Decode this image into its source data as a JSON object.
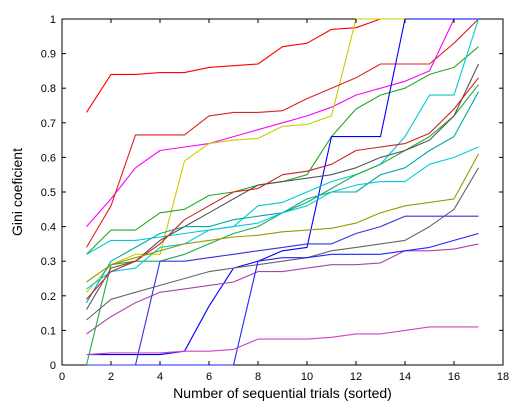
{
  "chart_data": {
    "type": "line",
    "title": "",
    "xlabel": "Number of sequential trials (sorted)",
    "ylabel": "Gini coeficient",
    "xlim": [
      0,
      18
    ],
    "ylim": [
      0,
      1
    ],
    "xticks": [
      0,
      2,
      4,
      6,
      8,
      10,
      12,
      14,
      16,
      18
    ],
    "yticks": [
      0,
      0.1,
      0.2,
      0.3,
      0.4,
      0.5,
      0.6,
      0.7,
      0.8,
      0.9,
      1
    ],
    "xtick_labels": [
      "0",
      "2",
      "4",
      "6",
      "8",
      "10",
      "12",
      "14",
      "16",
      "18"
    ],
    "ytick_labels": [
      "0",
      "0.1",
      "0.2",
      "0.3",
      "0.4",
      "0.5",
      "0.6",
      "0.7",
      "0.8",
      "0.9",
      "1"
    ],
    "grid": false,
    "series": [
      {
        "color": "#ff0000",
        "x": [
          1,
          2,
          3,
          4,
          5,
          6,
          7,
          8,
          9,
          10,
          11,
          12,
          13,
          14,
          15,
          16,
          17
        ],
        "y": [
          0.73,
          0.84,
          0.84,
          0.845,
          0.845,
          0.86,
          0.865,
          0.87,
          0.92,
          0.93,
          0.97,
          0.975,
          1.0,
          1.0,
          1.0,
          1.0,
          1.0
        ]
      },
      {
        "color": "#ff00ff",
        "x": [
          1,
          2,
          3,
          4,
          5,
          6,
          7,
          8,
          9,
          10,
          11,
          12,
          13,
          14,
          15,
          16,
          17
        ],
        "y": [
          0.4,
          0.48,
          0.57,
          0.62,
          0.63,
          0.64,
          0.66,
          0.68,
          0.7,
          0.72,
          0.745,
          0.78,
          0.8,
          0.82,
          0.85,
          1.0,
          1.0
        ]
      },
      {
        "color": "#cccc00",
        "x": [
          1,
          2,
          3,
          4,
          5,
          6,
          7,
          8,
          9,
          10,
          11,
          12,
          13,
          14,
          15,
          16,
          17
        ],
        "y": [
          0.21,
          0.29,
          0.32,
          0.32,
          0.59,
          0.64,
          0.65,
          0.655,
          0.69,
          0.695,
          0.72,
          1.0,
          1.0,
          1.0,
          1.0,
          1.0,
          1.0
        ]
      },
      {
        "color": "#dd2222",
        "x": [
          1,
          2,
          3,
          4,
          5,
          6,
          7,
          8,
          9,
          10,
          11,
          12,
          13,
          14,
          15,
          16,
          17
        ],
        "y": [
          0.34,
          0.46,
          0.665,
          0.665,
          0.665,
          0.72,
          0.73,
          0.73,
          0.735,
          0.77,
          0.8,
          0.83,
          0.87,
          0.87,
          0.87,
          0.93,
          1.0
        ]
      },
      {
        "color": "#22aa22",
        "x": [
          1,
          2,
          3,
          4,
          5,
          6,
          7,
          8,
          9,
          10,
          11,
          12,
          13,
          14,
          15,
          16,
          17
        ],
        "y": [
          0.32,
          0.39,
          0.39,
          0.44,
          0.45,
          0.49,
          0.5,
          0.52,
          0.53,
          0.55,
          0.66,
          0.74,
          0.78,
          0.8,
          0.84,
          0.86,
          0.92
        ]
      },
      {
        "color": "#0000ff",
        "x": [
          1,
          2,
          3,
          4,
          5,
          6,
          7,
          8,
          9,
          10,
          11,
          12,
          13,
          14,
          15,
          16,
          17
        ],
        "y": [
          0.03,
          0.03,
          0.03,
          0.03,
          0.04,
          0.17,
          0.28,
          0.3,
          0.33,
          0.34,
          0.66,
          0.66,
          0.66,
          1.0,
          1.0,
          1.0,
          1.0
        ]
      },
      {
        "color": "#00cccc",
        "x": [
          1,
          2,
          3,
          4,
          5,
          6,
          7,
          8,
          9,
          10,
          11,
          12,
          13,
          14,
          15,
          16,
          17
        ],
        "y": [
          0.32,
          0.36,
          0.36,
          0.37,
          0.38,
          0.39,
          0.4,
          0.46,
          0.47,
          0.5,
          0.53,
          0.55,
          0.58,
          0.66,
          0.78,
          0.78,
          1.0
        ]
      },
      {
        "color": "#22aa44",
        "x": [
          1,
          2,
          3,
          4,
          5,
          6,
          7,
          8,
          9,
          10,
          11,
          12,
          13,
          14,
          15,
          16,
          17
        ],
        "y": [
          0.0,
          0.29,
          0.3,
          0.3,
          0.32,
          0.35,
          0.38,
          0.4,
          0.44,
          0.47,
          0.51,
          0.55,
          0.58,
          0.62,
          0.66,
          0.72,
          0.81
        ]
      },
      {
        "color": "#555555",
        "x": [
          1,
          2,
          3,
          4,
          5,
          6,
          7,
          8,
          9,
          10,
          11,
          12,
          13,
          14,
          15,
          16,
          17
        ],
        "y": [
          0.16,
          0.28,
          0.3,
          0.36,
          0.4,
          0.44,
          0.48,
          0.52,
          0.53,
          0.54,
          0.55,
          0.57,
          0.6,
          0.62,
          0.65,
          0.72,
          0.87
        ]
      },
      {
        "color": "#00aaaa",
        "x": [
          1,
          2,
          3,
          4,
          5,
          6,
          7,
          8,
          9,
          10,
          11,
          12,
          13,
          14,
          15,
          16,
          17
        ],
        "y": [
          0.18,
          0.3,
          0.34,
          0.38,
          0.4,
          0.4,
          0.42,
          0.43,
          0.44,
          0.48,
          0.5,
          0.5,
          0.55,
          0.57,
          0.62,
          0.66,
          0.79
        ]
      },
      {
        "color": "#00ccdd",
        "x": [
          1,
          2,
          3,
          4,
          5,
          6,
          7,
          8,
          9,
          10,
          11,
          12,
          13,
          14,
          15,
          16,
          17
        ],
        "y": [
          0.22,
          0.27,
          0.28,
          0.34,
          0.35,
          0.39,
          0.4,
          0.41,
          0.44,
          0.46,
          0.5,
          0.52,
          0.53,
          0.53,
          0.58,
          0.6,
          0.63
        ]
      },
      {
        "color": "#cc2222",
        "x": [
          1,
          2,
          3,
          4,
          5,
          6,
          7,
          8,
          9,
          10,
          11,
          12,
          13,
          14,
          15,
          16,
          17
        ],
        "y": [
          0.19,
          0.27,
          0.3,
          0.35,
          0.42,
          0.46,
          0.5,
          0.51,
          0.55,
          0.56,
          0.58,
          0.62,
          0.63,
          0.64,
          0.67,
          0.74,
          0.83
        ]
      },
      {
        "color": "#aa44aa",
        "x": [
          1,
          2,
          3,
          4,
          5,
          6,
          7,
          8,
          9,
          10,
          11,
          12,
          13,
          14,
          15,
          16,
          17
        ],
        "y": [
          0.09,
          0.14,
          0.18,
          0.21,
          0.22,
          0.23,
          0.24,
          0.27,
          0.27,
          0.28,
          0.29,
          0.29,
          0.295,
          0.33,
          0.33,
          0.335,
          0.35
        ]
      },
      {
        "color": "#999900",
        "x": [
          1,
          2,
          3,
          4,
          5,
          6,
          7,
          8,
          9,
          10,
          11,
          12,
          13,
          14,
          15,
          16,
          17
        ],
        "y": [
          0.24,
          0.29,
          0.31,
          0.33,
          0.35,
          0.36,
          0.37,
          0.375,
          0.385,
          0.39,
          0.395,
          0.41,
          0.44,
          0.46,
          0.47,
          0.48,
          0.61
        ]
      },
      {
        "color": "#666666",
        "x": [
          1,
          2,
          3,
          4,
          5,
          6,
          7,
          8,
          9,
          10,
          11,
          12,
          13,
          14,
          15,
          16,
          17
        ],
        "y": [
          0.13,
          0.19,
          0.21,
          0.23,
          0.25,
          0.27,
          0.28,
          0.29,
          0.3,
          0.31,
          0.33,
          0.34,
          0.35,
          0.36,
          0.4,
          0.45,
          0.57
        ]
      },
      {
        "color": "#2222ff",
        "x": [
          1,
          2,
          3,
          4,
          5,
          6,
          7,
          8,
          9,
          10,
          11,
          12,
          13,
          14,
          15,
          16,
          17
        ],
        "y": [
          0.0,
          0.0,
          0.0,
          0.0,
          0.0,
          0.0,
          0.0,
          0.3,
          0.31,
          0.31,
          0.32,
          0.32,
          0.32,
          0.33,
          0.34,
          0.36,
          0.38
        ]
      },
      {
        "color": "#3333dd",
        "x": [
          1,
          2,
          3,
          4,
          5,
          6,
          7,
          8,
          9,
          10,
          11,
          12,
          13,
          14,
          15,
          16,
          17
        ],
        "y": [
          0.0,
          0.0,
          0.0,
          0.3,
          0.3,
          0.31,
          0.32,
          0.33,
          0.34,
          0.35,
          0.35,
          0.38,
          0.4,
          0.43,
          0.43,
          0.43,
          0.43
        ]
      },
      {
        "color": "#cc44cc",
        "x": [
          1,
          2,
          3,
          4,
          5,
          6,
          7,
          8,
          9,
          10,
          11,
          12,
          13,
          14,
          15,
          16,
          17
        ],
        "y": [
          0.03,
          0.035,
          0.035,
          0.035,
          0.04,
          0.04,
          0.045,
          0.075,
          0.075,
          0.075,
          0.08,
          0.09,
          0.09,
          0.1,
          0.11,
          0.11,
          0.11
        ]
      }
    ]
  }
}
